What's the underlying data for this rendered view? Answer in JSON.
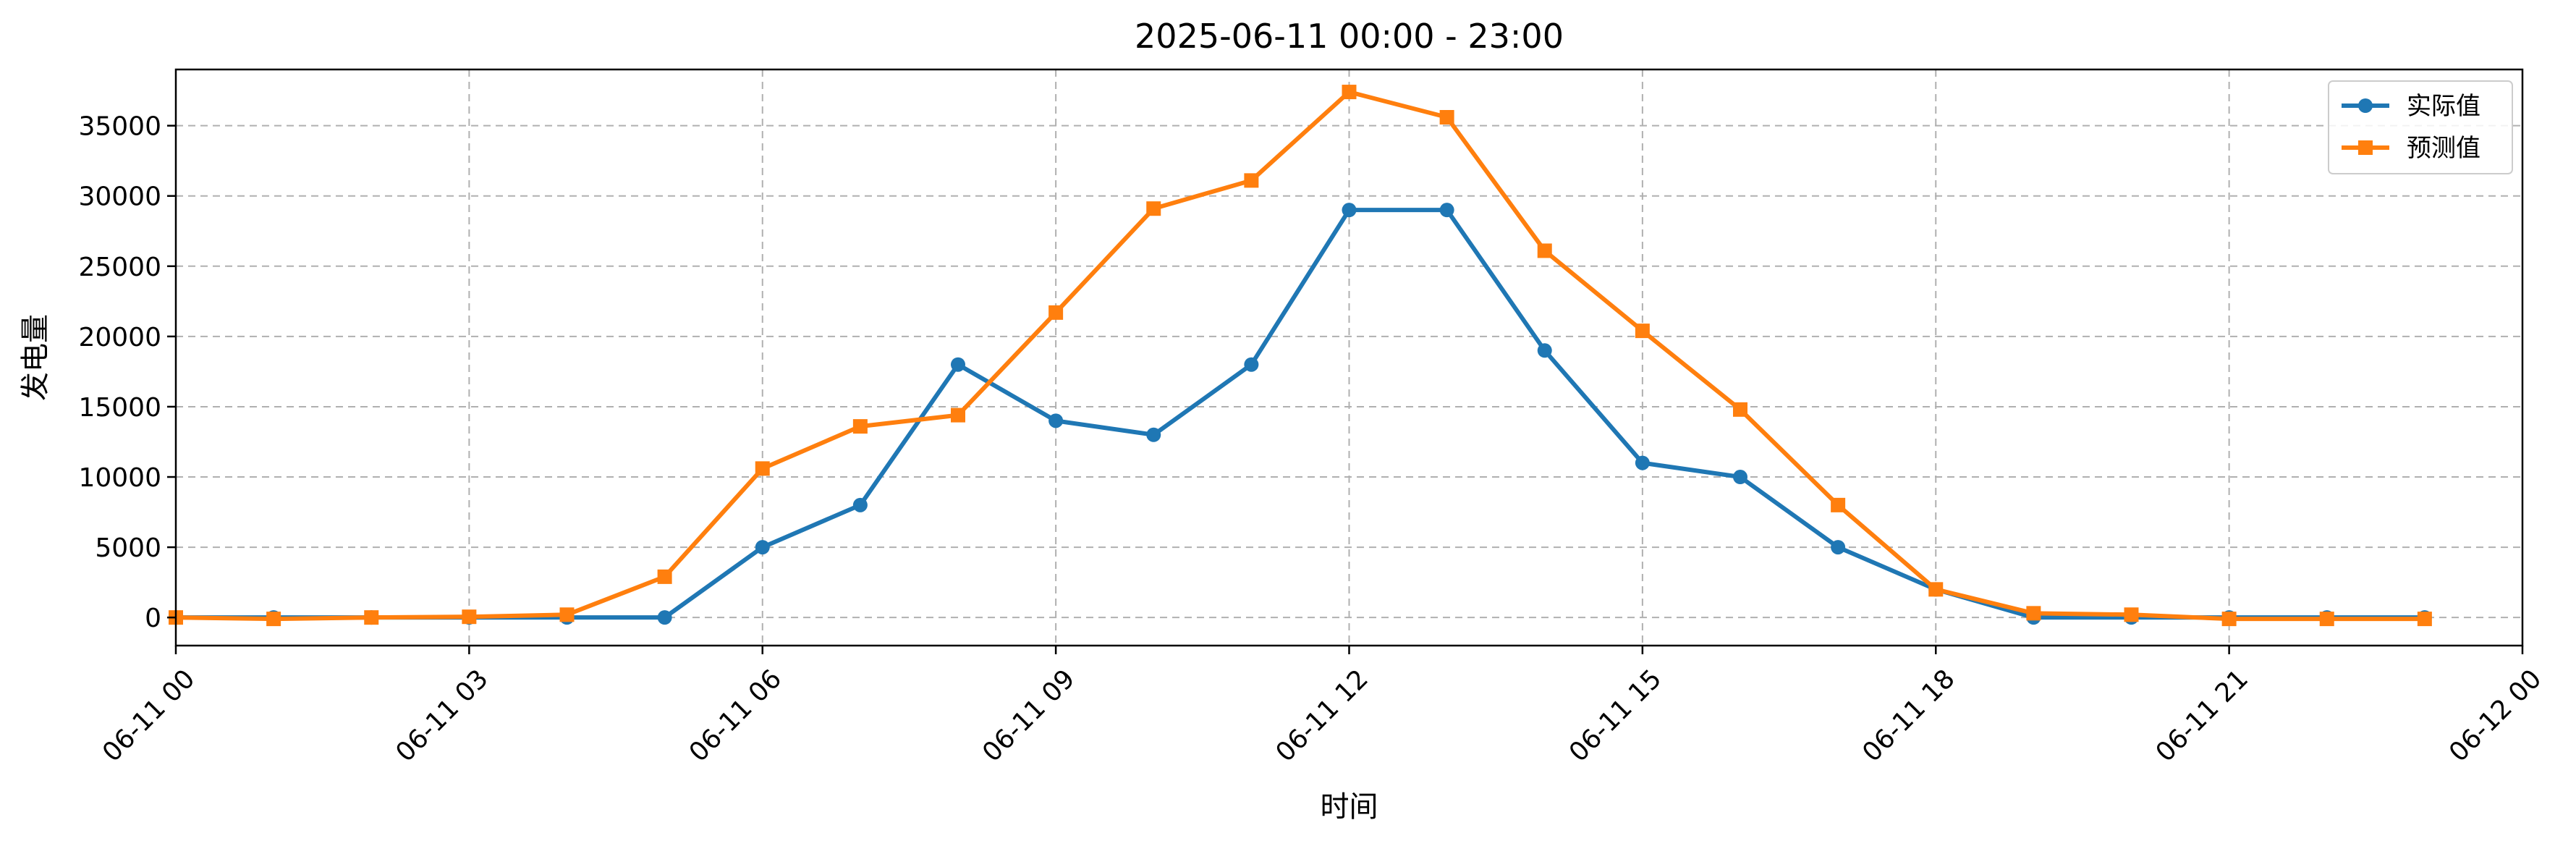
{
  "chart_data": {
    "type": "line",
    "title": "2025-06-11 00:00 - 23:00",
    "xlabel": "时间",
    "ylabel": "发电量",
    "x": [
      "00:00",
      "01:00",
      "02:00",
      "03:00",
      "04:00",
      "05:00",
      "06:00",
      "07:00",
      "08:00",
      "09:00",
      "10:00",
      "11:00",
      "12:00",
      "13:00",
      "14:00",
      "15:00",
      "16:00",
      "17:00",
      "18:00",
      "19:00",
      "20:00",
      "21:00",
      "22:00",
      "23:00"
    ],
    "xlim": [
      0,
      24
    ],
    "x_ticks": [
      0,
      3,
      6,
      9,
      12,
      15,
      18,
      21,
      24
    ],
    "x_tick_labels": [
      "06-11 00",
      "06-11 03",
      "06-11 06",
      "06-11 09",
      "06-11 12",
      "06-11 15",
      "06-11 18",
      "06-11 21",
      "06-12 00"
    ],
    "ylim": [
      -2000,
      39000
    ],
    "y_ticks": [
      0,
      5000,
      10000,
      15000,
      20000,
      25000,
      30000,
      35000
    ],
    "y_tick_labels": [
      "0",
      "5000",
      "10000",
      "15000",
      "20000",
      "25000",
      "30000",
      "35000"
    ],
    "grid": true,
    "legend_position": "top-right",
    "series": [
      {
        "name": "实际值",
        "color": "#1f77b4",
        "marker": "circle",
        "values": [
          0,
          0,
          0,
          0,
          0,
          0,
          5000,
          8000,
          18000,
          14000,
          13000,
          18000,
          29000,
          29000,
          19000,
          11000,
          10000,
          5000,
          2000,
          0,
          0,
          0,
          0,
          0
        ]
      },
      {
        "name": "预测值",
        "color": "#ff7f0e",
        "marker": "square",
        "values": [
          0,
          -100,
          0,
          50,
          200,
          2900,
          10600,
          13600,
          14400,
          21700,
          29100,
          31100,
          37400,
          35600,
          26100,
          20400,
          14800,
          8000,
          2000,
          300,
          200,
          -100,
          -100,
          -100
        ]
      }
    ]
  }
}
